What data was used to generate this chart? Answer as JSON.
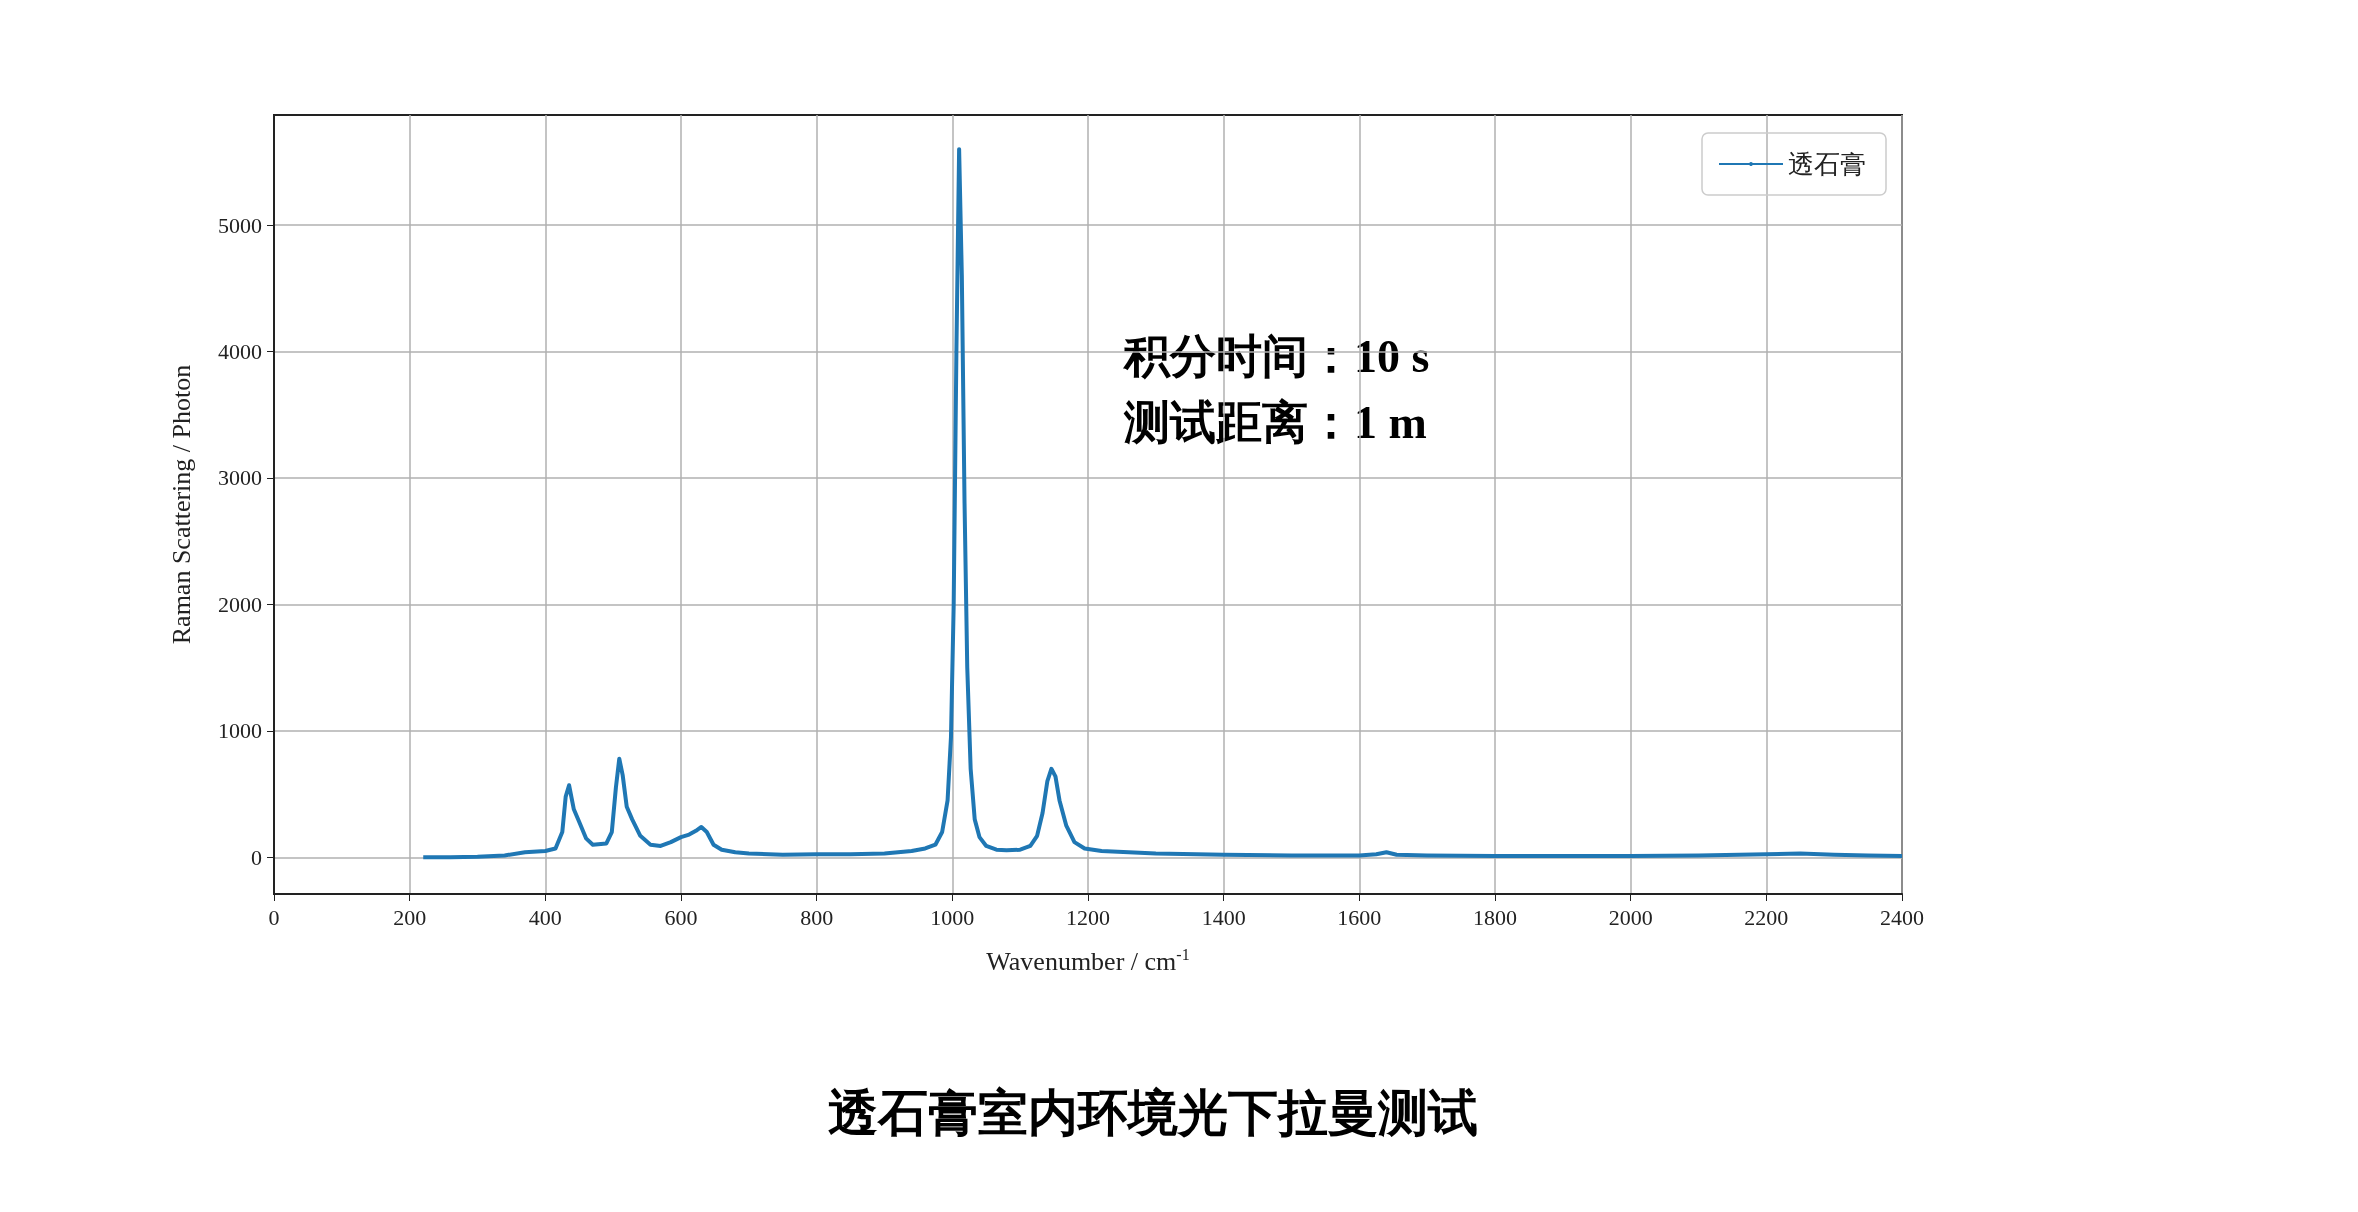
{
  "chart_data": {
    "type": "line",
    "title": "透石膏室内环境光下拉曼测试",
    "xlabel": "Wavenumber / cm$^{-1}$",
    "ylabel": "Raman Scattering / Photon",
    "annotations": [
      "积分时间：10 s",
      "测试距离：1 m"
    ],
    "xlim": [
      0,
      2400
    ],
    "xticks": [
      0,
      200,
      400,
      600,
      800,
      1000,
      1200,
      1400,
      1600,
      1800,
      2000,
      2200,
      2400
    ],
    "ylim": [
      -290,
      5870
    ],
    "yticks": [
      0,
      1000,
      2000,
      3000,
      4000,
      5000
    ],
    "grid": true,
    "legend": "top right",
    "series": [
      {
        "name": "透石膏",
        "color": "#1f77b4",
        "x": [
          220,
          260,
          300,
          340,
          370,
          400,
          415,
          425,
          430,
          435,
          442,
          450,
          460,
          470,
          490,
          498,
          504,
          509,
          514,
          520,
          528,
          540,
          555,
          570,
          585,
          600,
          612,
          622,
          630,
          638,
          648,
          660,
          680,
          700,
          750,
          800,
          850,
          900,
          940,
          960,
          975,
          985,
          993,
          998,
          1002,
          1006,
          1010,
          1014,
          1018,
          1022,
          1027,
          1033,
          1040,
          1050,
          1065,
          1080,
          1100,
          1115,
          1125,
          1133,
          1140,
          1146,
          1152,
          1158,
          1168,
          1180,
          1195,
          1220,
          1300,
          1400,
          1500,
          1600,
          1625,
          1640,
          1655,
          1700,
          1800,
          1900,
          2000,
          2100,
          2200,
          2250,
          2300,
          2350,
          2400
        ],
        "values": [
          0,
          0,
          5,
          15,
          40,
          50,
          70,
          200,
          480,
          570,
          380,
          280,
          150,
          100,
          110,
          200,
          550,
          780,
          650,
          400,
          300,
          170,
          100,
          90,
          120,
          160,
          180,
          210,
          240,
          200,
          100,
          60,
          40,
          30,
          20,
          25,
          25,
          30,
          50,
          70,
          100,
          200,
          450,
          950,
          2000,
          4000,
          5600,
          4600,
          2800,
          1500,
          700,
          300,
          160,
          90,
          60,
          55,
          60,
          90,
          170,
          350,
          600,
          700,
          640,
          450,
          250,
          120,
          70,
          50,
          30,
          20,
          15,
          15,
          25,
          40,
          20,
          15,
          10,
          10,
          10,
          15,
          25,
          30,
          20,
          15,
          10
        ]
      }
    ]
  }
}
